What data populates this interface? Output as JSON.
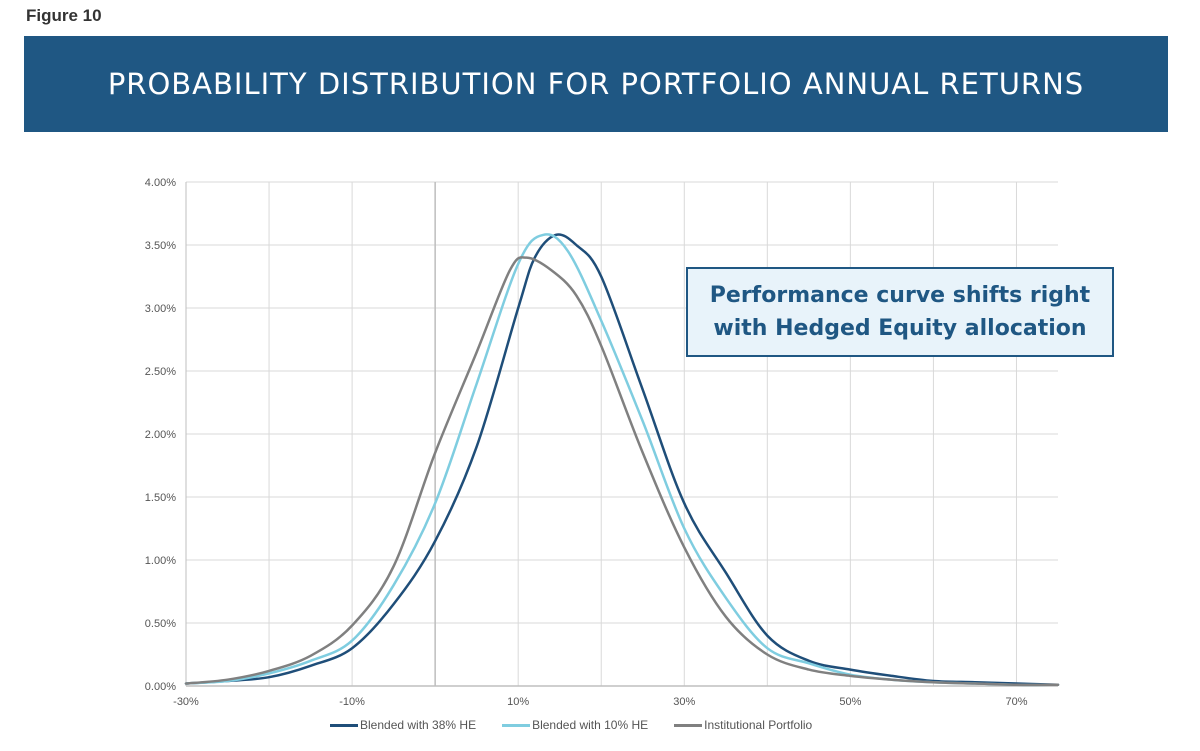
{
  "figure_label": "Figure 10",
  "banner_title": "PROBABILITY DISTRIBUTION FOR PORTFOLIO ANNUAL RETURNS",
  "callout": {
    "line1": "Performance curve shifts right",
    "line2": "with Hedged Equity allocation"
  },
  "colors": {
    "banner": "#1f5783",
    "series_38": "#1f4e79",
    "series_10": "#7fcde0",
    "series_inst": "#808080",
    "grid": "#d9d9d9"
  },
  "chart_data": {
    "type": "line",
    "title": "PROBABILITY DISTRIBUTION FOR PORTFOLIO ANNUAL RETURNS",
    "xlabel": "",
    "ylabel": "",
    "xlim": [
      -30,
      75
    ],
    "ylim": [
      0,
      4
    ],
    "x_ticks": [
      -30,
      -10,
      10,
      30,
      50,
      70
    ],
    "x_tick_labels": [
      "-30%",
      "-10%",
      "10%",
      "30%",
      "50%",
      "70%"
    ],
    "y_ticks": [
      0,
      0.5,
      1,
      1.5,
      2,
      2.5,
      3,
      3.5,
      4
    ],
    "y_tick_labels": [
      "0.00%",
      "0.50%",
      "1.00%",
      "1.50%",
      "2.00%",
      "2.50%",
      "3.00%",
      "3.50%",
      "4.00%"
    ],
    "grid": true,
    "legend": "bottom",
    "series": [
      {
        "name": "Blended with 38% HE",
        "color": "#1f4e79",
        "x": [
          -30,
          -25,
          -20,
          -15,
          -10,
          -5,
          0,
          5,
          10,
          12,
          14.5,
          17,
          20,
          25,
          30,
          35,
          40,
          45,
          50,
          55,
          60,
          65,
          70,
          75
        ],
        "y": [
          0.02,
          0.04,
          0.07,
          0.16,
          0.3,
          0.65,
          1.15,
          1.9,
          3.0,
          3.4,
          3.58,
          3.5,
          3.25,
          2.35,
          1.45,
          0.9,
          0.4,
          0.2,
          0.13,
          0.08,
          0.04,
          0.03,
          0.02,
          0.01
        ]
      },
      {
        "name": "Blended with 10% HE",
        "color": "#7fcde0",
        "x": [
          -30,
          -25,
          -20,
          -15,
          -10,
          -5,
          0,
          5,
          10,
          13,
          16,
          20,
          25,
          30,
          35,
          40,
          45,
          50,
          55,
          60,
          65,
          70,
          75
        ],
        "y": [
          0.02,
          0.04,
          0.1,
          0.2,
          0.36,
          0.8,
          1.45,
          2.4,
          3.35,
          3.58,
          3.45,
          2.9,
          2.1,
          1.25,
          0.7,
          0.3,
          0.18,
          0.09,
          0.05,
          0.03,
          0.02,
          0.01,
          0.01
        ]
      },
      {
        "name": "Institutional Portfolio",
        "color": "#808080",
        "x": [
          -30,
          -25,
          -20,
          -15,
          -10,
          -5,
          0,
          5,
          9,
          11,
          14,
          17,
          20,
          25,
          30,
          35,
          40,
          45,
          50,
          55,
          60,
          65,
          70,
          75
        ],
        "y": [
          0.02,
          0.05,
          0.12,
          0.24,
          0.48,
          0.95,
          1.85,
          2.65,
          3.3,
          3.4,
          3.3,
          3.1,
          2.7,
          1.85,
          1.1,
          0.55,
          0.25,
          0.13,
          0.08,
          0.05,
          0.03,
          0.02,
          0.01,
          0.01
        ]
      }
    ]
  }
}
